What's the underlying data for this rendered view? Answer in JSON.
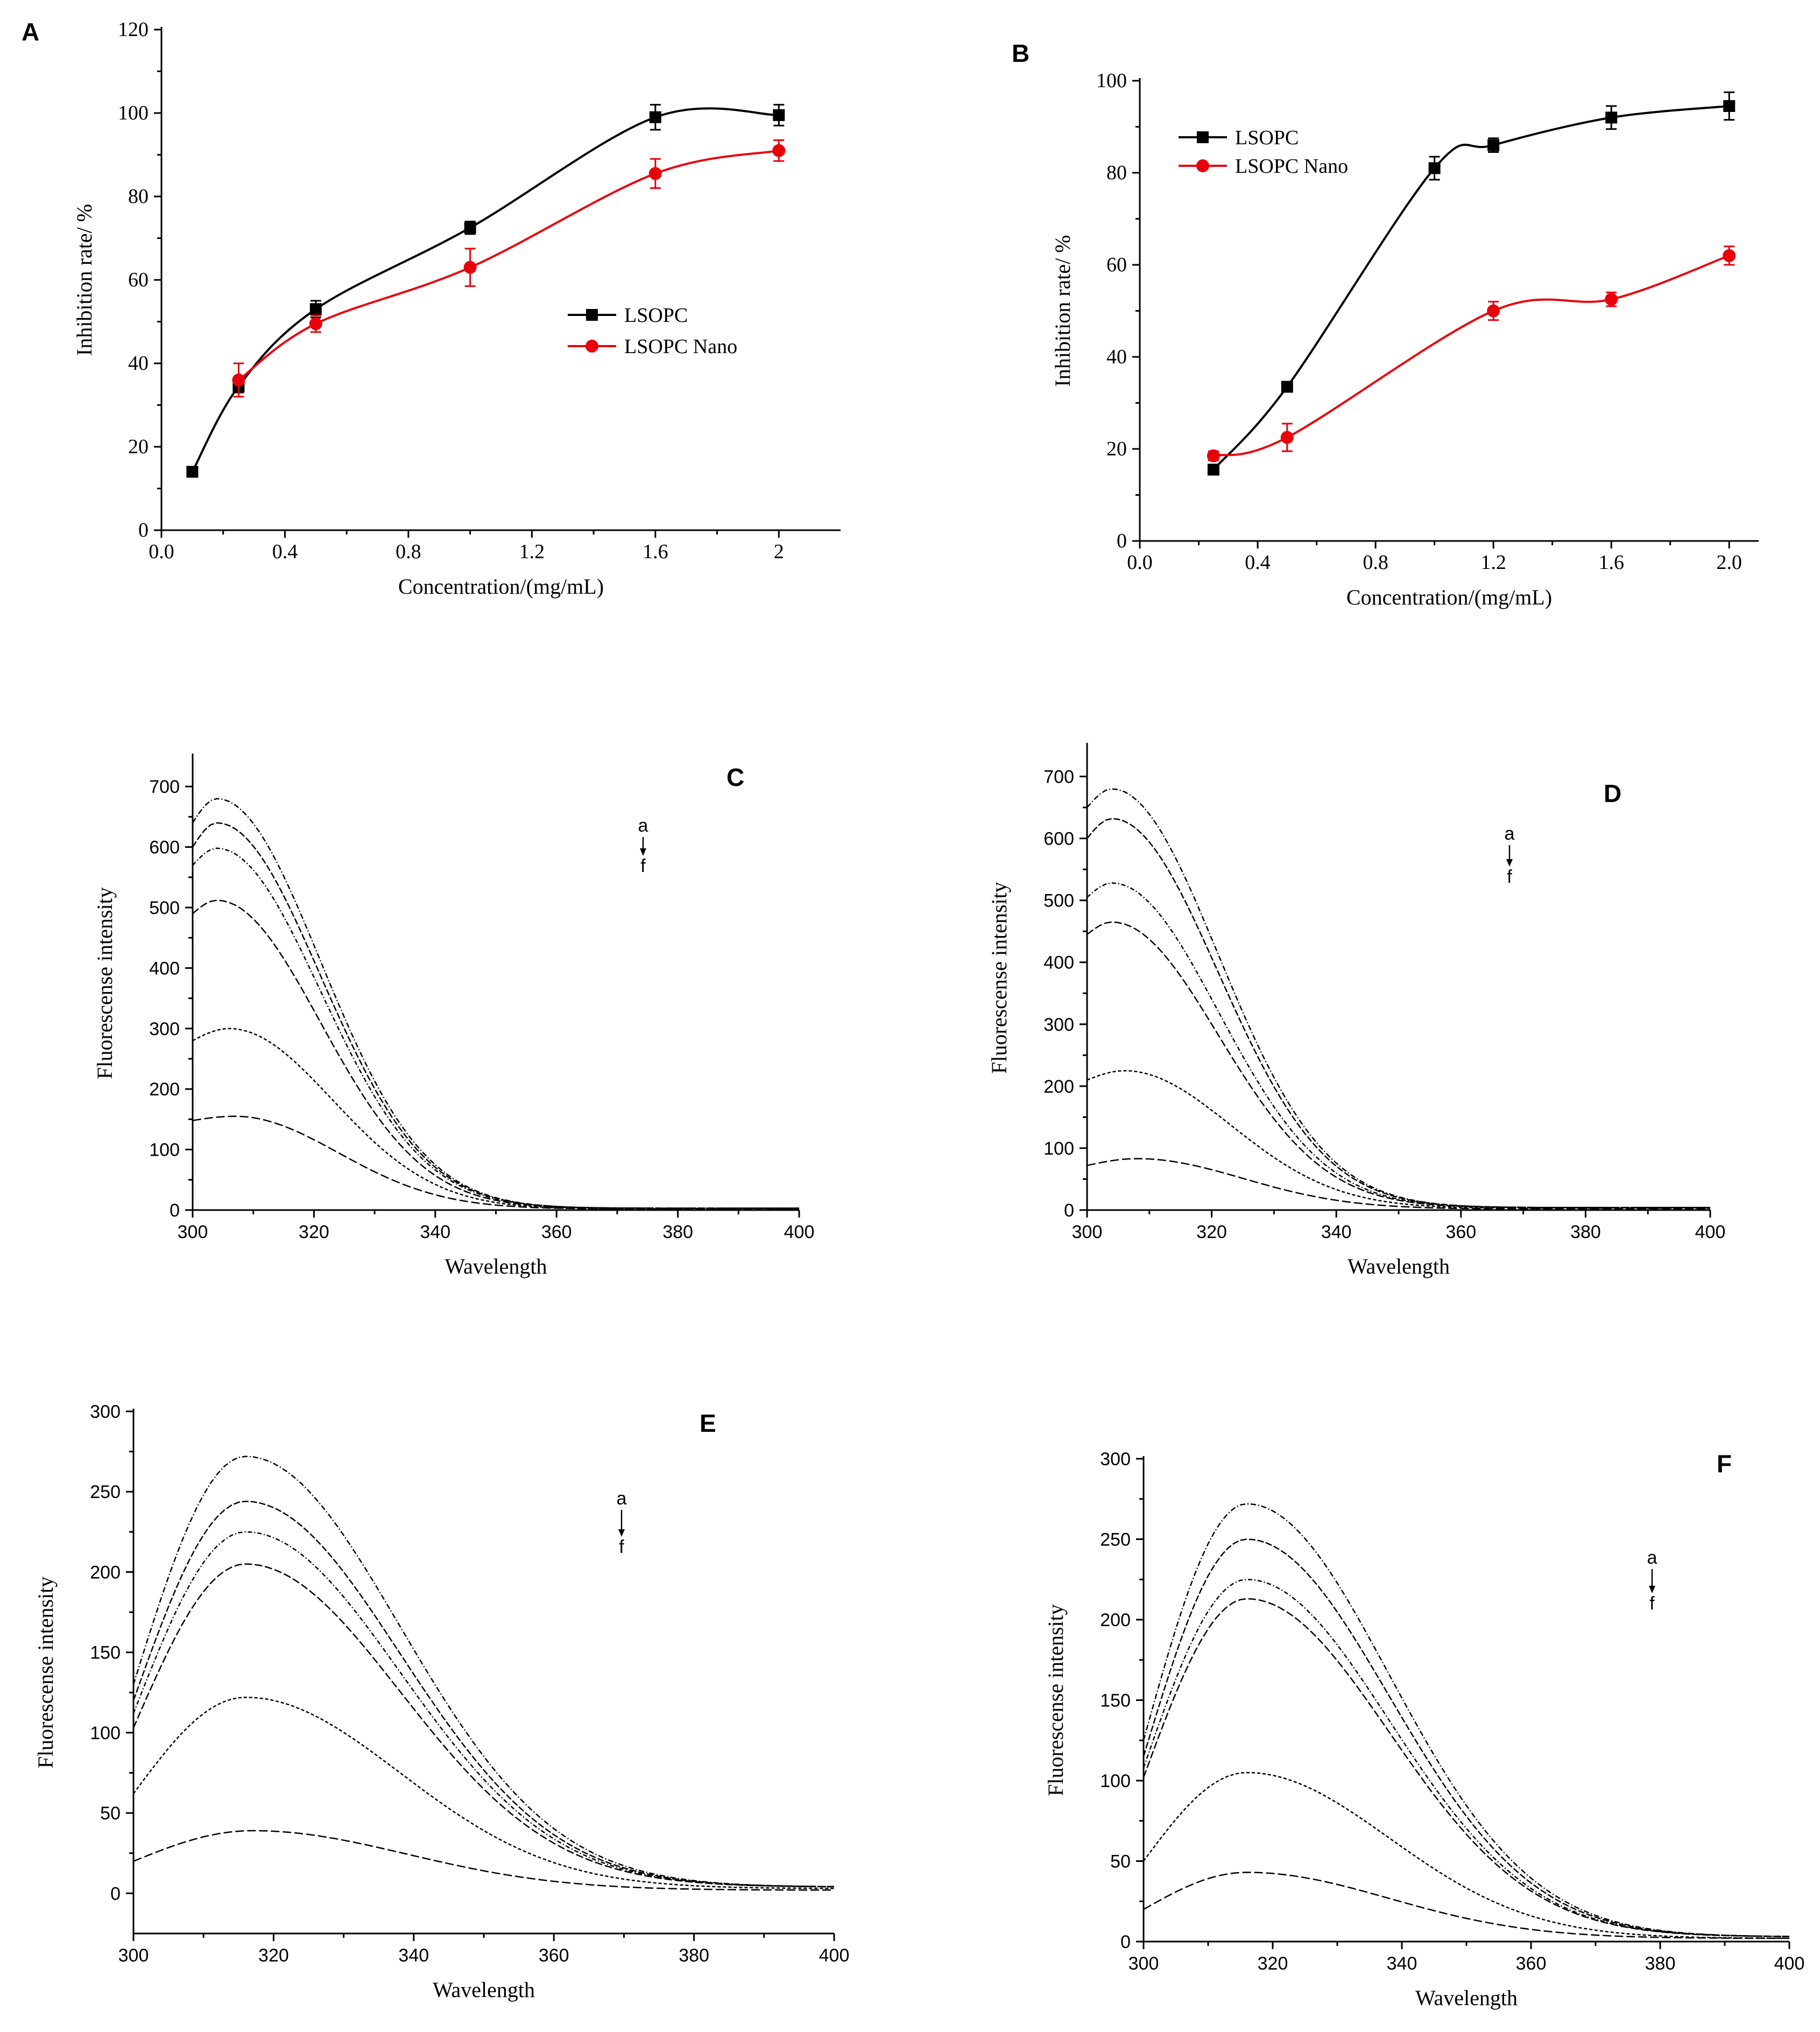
{
  "chart_data": [
    {
      "id": "A",
      "type": "line",
      "panel_label": "A",
      "xlabel": "Concentration/(mg/mL)",
      "ylabel": "Inhibition rate/ %",
      "xlim": [
        0,
        2.2
      ],
      "ylim": [
        0,
        120
      ],
      "x_ticks": [
        "0.0",
        "0.4",
        "0.8",
        "1.2",
        "1.6",
        "2"
      ],
      "x_tick_values": [
        0,
        0.4,
        0.8,
        1.2,
        1.6,
        2.0
      ],
      "y_ticks": [
        0,
        20,
        40,
        60,
        80,
        100,
        120
      ],
      "legend_position": "center-right",
      "series": [
        {
          "name": "LSOPC",
          "color": "#000000",
          "marker": "square",
          "x": [
            0.1,
            0.25,
            0.5,
            1.0,
            1.6,
            2.0
          ],
          "y": [
            14,
            34.5,
            53,
            72.5,
            99,
            99.5
          ],
          "err": [
            1.0,
            1.5,
            2.0,
            1.5,
            3.0,
            2.5
          ]
        },
        {
          "name": "LSOPC Nano",
          "color": "#e8000b",
          "marker": "circle",
          "x": [
            0.25,
            0.5,
            1.0,
            1.6,
            2.0
          ],
          "y": [
            36,
            49.5,
            63,
            85.5,
            91
          ],
          "err": [
            4.0,
            2.0,
            4.5,
            3.5,
            2.5
          ]
        }
      ]
    },
    {
      "id": "B",
      "type": "line",
      "panel_label": "B",
      "xlabel": "Concentration/(mg/mL)",
      "ylabel": "Inhibition rate/ %",
      "xlim": [
        0,
        2.1
      ],
      "ylim": [
        0,
        100
      ],
      "x_ticks": [
        "0.0",
        "0.4",
        "0.8",
        "1.2",
        "1.6",
        "2.0"
      ],
      "x_tick_values": [
        0,
        0.4,
        0.8,
        1.2,
        1.6,
        2.0
      ],
      "y_ticks": [
        0,
        20,
        40,
        60,
        80,
        100
      ],
      "legend_position": "top-left",
      "series": [
        {
          "name": "LSOPC",
          "color": "#000000",
          "marker": "square",
          "x": [
            0.25,
            0.5,
            1.0,
            1.2,
            1.6,
            2.0
          ],
          "y": [
            15.5,
            33.5,
            81,
            86,
            92,
            94.5
          ],
          "err": [
            1.0,
            1.0,
            2.5,
            1.5,
            2.5,
            3.0
          ]
        },
        {
          "name": "LSOPC Nano",
          "color": "#e8000b",
          "marker": "circle",
          "x": [
            0.25,
            0.5,
            1.2,
            1.6,
            2.0
          ],
          "y": [
            18.5,
            22.5,
            50,
            52.5,
            62
          ],
          "err": [
            1.0,
            3.0,
            2.0,
            1.5,
            2.0
          ]
        }
      ]
    },
    {
      "id": "C",
      "type": "line",
      "panel_label": "C",
      "xlabel": "Wavelength",
      "ylabel": "Fluorescense intensity",
      "xlim": [
        300,
        400
      ],
      "ylim": [
        0,
        750
      ],
      "x_ticks": [
        300,
        320,
        340,
        360,
        380,
        400
      ],
      "y_ticks": [
        0,
        100,
        200,
        300,
        400,
        500,
        600,
        700
      ],
      "arrow_top": "a",
      "arrow_bottom": "f",
      "curves": [
        {
          "peak": 680,
          "peak_x": 304,
          "start": 640,
          "tail": 3
        },
        {
          "peak": 640,
          "peak_x": 304,
          "start": 600,
          "tail": 3
        },
        {
          "peak": 598,
          "peak_x": 304,
          "start": 570,
          "tail": 3
        },
        {
          "peak": 512,
          "peak_x": 304,
          "start": 490,
          "tail": 3
        },
        {
          "peak": 300,
          "peak_x": 306,
          "start": 280,
          "tail": 2
        },
        {
          "peak": 155,
          "peak_x": 307,
          "start": 148,
          "tail": 2
        }
      ]
    },
    {
      "id": "D",
      "type": "line",
      "panel_label": "D",
      "xlabel": "Wavelength",
      "ylabel": "Fluorescense intensity",
      "xlim": [
        300,
        400
      ],
      "ylim": [
        0,
        750
      ],
      "x_ticks": [
        300,
        320,
        340,
        360,
        380,
        400
      ],
      "y_ticks": [
        0,
        100,
        200,
        300,
        400,
        500,
        600,
        700
      ],
      "arrow_top": "a",
      "arrow_bottom": "f",
      "curves": [
        {
          "peak": 680,
          "peak_x": 304,
          "start": 650,
          "tail": 4
        },
        {
          "peak": 632,
          "peak_x": 304,
          "start": 600,
          "tail": 4
        },
        {
          "peak": 528,
          "peak_x": 304,
          "start": 505,
          "tail": 4
        },
        {
          "peak": 465,
          "peak_x": 304,
          "start": 445,
          "tail": 4
        },
        {
          "peak": 225,
          "peak_x": 306,
          "start": 210,
          "tail": 3
        },
        {
          "peak": 83,
          "peak_x": 308,
          "start": 72,
          "tail": 2
        }
      ]
    },
    {
      "id": "E",
      "type": "line",
      "panel_label": "E",
      "xlabel": "Wavelength",
      "ylabel": "Fluorescense intensity",
      "xlim": [
        300,
        400
      ],
      "ylim": [
        -25,
        300
      ],
      "x_ticks": [
        300,
        320,
        340,
        360,
        380,
        400
      ],
      "y_ticks": [
        0,
        50,
        100,
        150,
        200,
        250,
        300
      ],
      "arrow_top": "a",
      "arrow_bottom": "f",
      "curves": [
        {
          "peak": 272,
          "peak_x": 316,
          "start": 130,
          "tail": 4
        },
        {
          "peak": 244,
          "peak_x": 316,
          "start": 120,
          "tail": 4
        },
        {
          "peak": 225,
          "peak_x": 316,
          "start": 112,
          "tail": 4
        },
        {
          "peak": 205,
          "peak_x": 316,
          "start": 103,
          "tail": 4
        },
        {
          "peak": 122,
          "peak_x": 316,
          "start": 62,
          "tail": 3
        },
        {
          "peak": 39,
          "peak_x": 317,
          "start": 20,
          "tail": 2
        }
      ]
    },
    {
      "id": "F",
      "type": "line",
      "panel_label": "F",
      "xlabel": "Wavelength",
      "ylabel": "Fluorescense intensity",
      "xlim": [
        300,
        400
      ],
      "ylim": [
        0,
        300
      ],
      "x_ticks": [
        300,
        320,
        340,
        360,
        380,
        400
      ],
      "y_ticks": [
        0,
        50,
        100,
        150,
        200,
        250,
        300
      ],
      "arrow_top": "a",
      "arrow_bottom": "f",
      "curves": [
        {
          "peak": 272,
          "peak_x": 316,
          "start": 125,
          "tail": 3
        },
        {
          "peak": 250,
          "peak_x": 316,
          "start": 115,
          "tail": 3
        },
        {
          "peak": 225,
          "peak_x": 316,
          "start": 108,
          "tail": 3
        },
        {
          "peak": 213,
          "peak_x": 316,
          "start": 102,
          "tail": 3
        },
        {
          "peak": 105,
          "peak_x": 316,
          "start": 50,
          "tail": 2
        },
        {
          "peak": 43,
          "peak_x": 316,
          "start": 20,
          "tail": 2
        }
      ]
    }
  ]
}
